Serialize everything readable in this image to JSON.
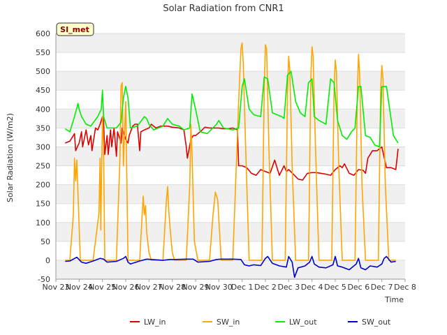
{
  "chart_data": {
    "type": "line",
    "title": "Solar Radiation from CNR1",
    "xlabel": "Time",
    "ylabel": "Solar Radiation (W/m2)",
    "badge": "SI_met",
    "ylim": [
      -50,
      600
    ],
    "xlim": [
      0,
      15
    ],
    "yticks": [
      -50,
      0,
      50,
      100,
      150,
      200,
      250,
      300,
      350,
      400,
      450,
      500,
      550,
      600
    ],
    "xticks": [
      {
        "pos": 0,
        "label": "Nov 23"
      },
      {
        "pos": 1,
        "label": "Nov 24"
      },
      {
        "pos": 2,
        "label": "Nov 25"
      },
      {
        "pos": 3,
        "label": "Nov 26"
      },
      {
        "pos": 4,
        "label": "Nov 27"
      },
      {
        "pos": 5,
        "label": "Nov 28"
      },
      {
        "pos": 6,
        "label": "Nov 29"
      },
      {
        "pos": 7,
        "label": "Nov 30"
      },
      {
        "pos": 8,
        "label": "Dec 1"
      },
      {
        "pos": 9,
        "label": "Dec 2"
      },
      {
        "pos": 10,
        "label": "Dec 3"
      },
      {
        "pos": 11,
        "label": "Dec 4"
      },
      {
        "pos": 12,
        "label": "Dec 5"
      },
      {
        "pos": 13,
        "label": "Dec 6"
      },
      {
        "pos": 14,
        "label": "Dec 7"
      },
      {
        "pos": 15,
        "label": "Dec 8"
      }
    ],
    "series": [
      {
        "name": "LW_in",
        "color": "#dd0000",
        "x": [
          0.4,
          0.6,
          0.8,
          0.85,
          1.0,
          1.1,
          1.15,
          1.3,
          1.4,
          1.5,
          1.55,
          1.7,
          1.8,
          1.9,
          2.0,
          2.05,
          2.1,
          2.2,
          2.25,
          2.35,
          2.4,
          2.5,
          2.6,
          2.65,
          2.8,
          2.85,
          3.0,
          3.1,
          3.15,
          3.3,
          3.4,
          3.5,
          3.6,
          3.65,
          3.8,
          4.0,
          4.1,
          4.2,
          4.3,
          4.5,
          4.8,
          5.0,
          5.3,
          5.5,
          5.6,
          5.65,
          5.8,
          5.9,
          6.0,
          6.2,
          6.4,
          6.6,
          6.8,
          7.0,
          7.2,
          7.4,
          7.6,
          7.8,
          7.85,
          8.0,
          8.2,
          8.4,
          8.6,
          8.8,
          9.0,
          9.2,
          9.4,
          9.6,
          9.8,
          9.9,
          10.0,
          10.2,
          10.4,
          10.6,
          10.8,
          11.0,
          11.2,
          11.4,
          11.6,
          11.8,
          12.0,
          12.2,
          12.3,
          12.4,
          12.6,
          12.8,
          13.0,
          13.2,
          13.3,
          13.4,
          13.6,
          13.8,
          14.0,
          14.2,
          14.4,
          14.6,
          14.7
        ],
        "values": [
          310,
          315,
          335,
          290,
          310,
          340,
          300,
          345,
          305,
          330,
          290,
          350,
          345,
          360,
          380,
          370,
          280,
          330,
          280,
          345,
          300,
          350,
          275,
          340,
          310,
          350,
          320,
          310,
          330,
          355,
          360,
          360,
          290,
          340,
          345,
          350,
          360,
          355,
          350,
          355,
          355,
          352,
          350,
          345,
          300,
          270,
          320,
          330,
          330,
          340,
          352,
          350,
          350,
          350,
          348,
          348,
          350,
          345,
          250,
          250,
          245,
          230,
          225,
          240,
          235,
          230,
          265,
          225,
          250,
          235,
          240,
          228,
          215,
          212,
          230,
          232,
          232,
          230,
          228,
          225,
          240,
          250,
          245,
          255,
          230,
          225,
          240,
          238,
          230,
          270,
          290,
          290,
          300,
          245,
          245,
          240,
          295
        ]
      },
      {
        "name": "SW_in",
        "color": "#ffa500",
        "x": [
          0.4,
          0.6,
          0.75,
          0.8,
          0.85,
          0.9,
          1.05,
          1.2,
          1.6,
          1.85,
          1.9,
          1.93,
          1.96,
          2.0,
          2.05,
          2.1,
          2.2,
          2.6,
          2.75,
          2.8,
          2.85,
          2.9,
          3.0,
          3.1,
          3.6,
          3.75,
          3.8,
          3.85,
          3.9,
          4.0,
          4.1,
          4.6,
          4.75,
          4.8,
          4.85,
          4.9,
          5.0,
          5.1,
          5.6,
          5.75,
          5.8,
          5.85,
          5.95,
          6.1,
          6.6,
          6.75,
          6.85,
          6.95,
          7.1,
          7.6,
          7.85,
          7.95,
          8.0,
          8.05,
          8.15,
          8.3,
          8.85,
          8.95,
          9.0,
          9.05,
          9.15,
          9.3,
          9.85,
          9.95,
          10.0,
          10.05,
          10.15,
          10.3,
          10.85,
          10.95,
          11.0,
          11.05,
          11.15,
          11.3,
          11.85,
          11.95,
          12.0,
          12.05,
          12.15,
          12.3,
          12.85,
          12.95,
          13.0,
          13.05,
          13.15,
          13.3,
          13.85,
          13.95,
          14.0,
          14.05,
          14.15,
          14.3,
          14.6
        ],
        "values": [
          0,
          0,
          120,
          270,
          210,
          265,
          0,
          0,
          0,
          125,
          270,
          80,
          210,
          380,
          300,
          0,
          0,
          0,
          270,
          460,
          470,
          250,
          420,
          0,
          0,
          170,
          120,
          145,
          75,
          20,
          0,
          0,
          160,
          195,
          130,
          90,
          20,
          0,
          0,
          200,
          360,
          280,
          50,
          0,
          0,
          120,
          180,
          160,
          0,
          0,
          420,
          560,
          575,
          520,
          300,
          0,
          0,
          450,
          570,
          560,
          300,
          0,
          0,
          450,
          540,
          500,
          250,
          0,
          0,
          480,
          565,
          540,
          300,
          0,
          0,
          450,
          530,
          500,
          250,
          0,
          0,
          450,
          545,
          490,
          200,
          0,
          0,
          450,
          515,
          480,
          200,
          0,
          0
        ]
      },
      {
        "name": "LW_out",
        "color": "#00ee00",
        "x": [
          0.4,
          0.6,
          0.8,
          0.95,
          1.0,
          1.1,
          1.3,
          1.5,
          1.8,
          1.95,
          2.0,
          2.05,
          2.2,
          2.4,
          2.6,
          2.8,
          2.9,
          3.0,
          3.1,
          3.2,
          3.5,
          3.8,
          3.9,
          4.0,
          4.2,
          4.4,
          4.6,
          4.8,
          5.0,
          5.3,
          5.5,
          5.75,
          5.85,
          6.0,
          6.2,
          6.5,
          6.9,
          7.0,
          7.2,
          7.6,
          7.85,
          8.0,
          8.1,
          8.3,
          8.5,
          8.8,
          8.95,
          9.1,
          9.3,
          9.5,
          9.7,
          9.8,
          9.95,
          10.1,
          10.3,
          10.5,
          10.7,
          10.85,
          11.0,
          11.1,
          11.3,
          11.6,
          11.8,
          11.95,
          12.1,
          12.3,
          12.5,
          12.7,
          12.85,
          13.0,
          13.1,
          13.3,
          13.5,
          13.7,
          13.9,
          14.0,
          14.2,
          14.5,
          14.7
        ],
        "values": [
          348,
          340,
          380,
          415,
          400,
          380,
          360,
          355,
          380,
          400,
          450,
          380,
          350,
          350,
          350,
          365,
          430,
          460,
          430,
          350,
          355,
          380,
          375,
          360,
          345,
          350,
          355,
          375,
          360,
          355,
          345,
          350,
          440,
          400,
          340,
          335,
          360,
          370,
          350,
          345,
          350,
          460,
          480,
          400,
          385,
          380,
          485,
          480,
          390,
          385,
          380,
          375,
          490,
          500,
          420,
          390,
          380,
          470,
          480,
          380,
          370,
          360,
          480,
          470,
          370,
          330,
          320,
          340,
          350,
          460,
          460,
          330,
          325,
          305,
          300,
          460,
          460,
          330,
          310
        ]
      },
      {
        "name": "SW_out",
        "color": "#0000cc",
        "x": [
          0.4,
          0.6,
          0.9,
          1.1,
          1.3,
          1.6,
          1.9,
          2.05,
          2.2,
          2.6,
          2.9,
          3.0,
          3.1,
          3.2,
          3.6,
          3.9,
          4.1,
          4.6,
          4.9,
          5.1,
          5.6,
          5.9,
          6.1,
          6.6,
          6.9,
          7.1,
          7.6,
          7.95,
          8.0,
          8.1,
          8.3,
          8.5,
          8.8,
          9.0,
          9.1,
          9.3,
          9.6,
          9.9,
          10.0,
          10.15,
          10.25,
          10.4,
          10.7,
          10.9,
          11.0,
          11.1,
          11.3,
          11.6,
          11.9,
          12.0,
          12.1,
          12.3,
          12.6,
          12.9,
          13.0,
          13.1,
          13.3,
          13.5,
          13.8,
          14.0,
          14.1,
          14.2,
          14.4,
          14.6
        ],
        "values": [
          -3,
          -2,
          8,
          -5,
          -8,
          -2,
          5,
          3,
          -5,
          -3,
          5,
          10,
          -5,
          -10,
          -2,
          3,
          2,
          0,
          2,
          2,
          3,
          3,
          -5,
          -3,
          2,
          3,
          3,
          2,
          -3,
          -12,
          -15,
          -12,
          -14,
          5,
          10,
          -8,
          -15,
          -18,
          10,
          -5,
          -45,
          -20,
          -15,
          -5,
          10,
          -10,
          -18,
          -20,
          -12,
          10,
          -15,
          -18,
          -25,
          -10,
          5,
          -20,
          -25,
          -15,
          -18,
          -10,
          5,
          10,
          -5,
          -3
        ]
      }
    ],
    "legend": [
      "LW_in",
      "SW_in",
      "LW_out",
      "SW_out"
    ]
  }
}
